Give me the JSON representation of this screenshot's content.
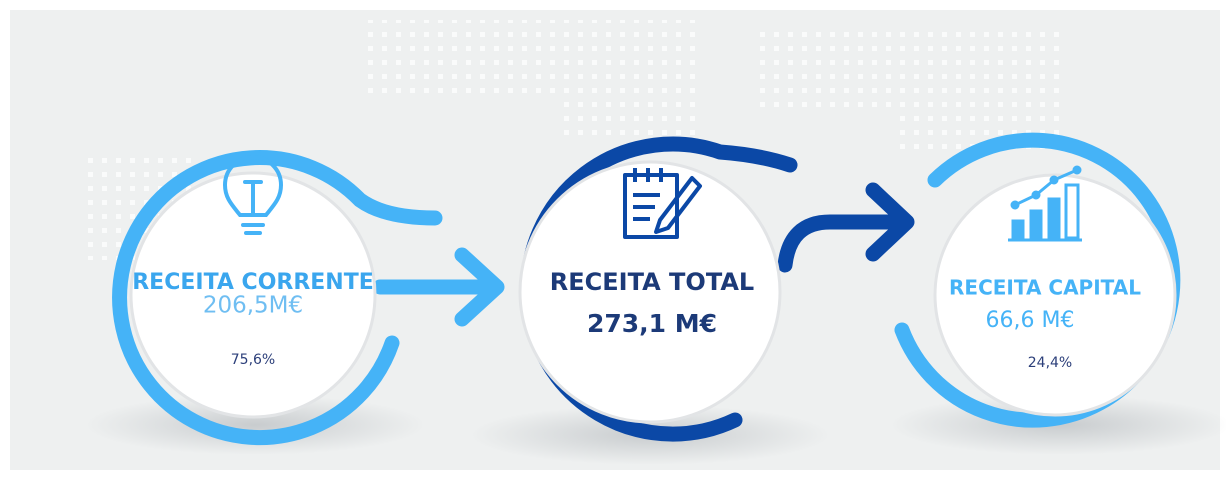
{
  "nodes": [
    {
      "label": "RECEITA CORRENTE",
      "value": "206,5M€",
      "share": "75,6%"
    },
    {
      "label": "RECEITA TOTAL",
      "value": "273,1 M€"
    },
    {
      "label": "RECEITA CAPITAL",
      "value": "66,6 M€",
      "share": "24,4%"
    }
  ]
}
